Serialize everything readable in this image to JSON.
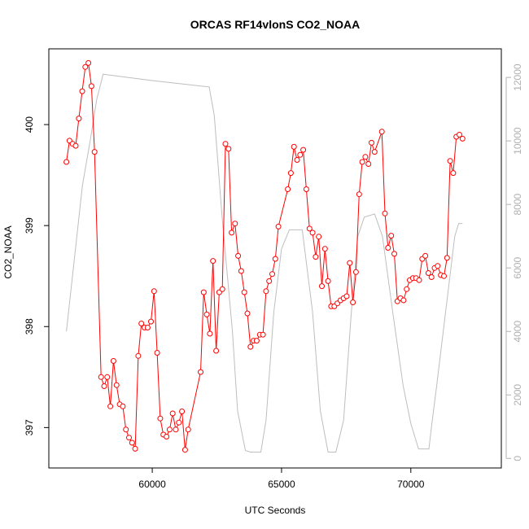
{
  "chart_data": {
    "type": "line",
    "title": "ORCAS RF14vlonS CO2_NOAA",
    "xlabel": "UTC Seconds",
    "ylabel": "CO2_NOAA",
    "y2label": "",
    "xlim": [
      56000,
      73500
    ],
    "ylim": [
      396.6,
      400.75
    ],
    "y2lim": [
      -300,
      12900
    ],
    "x_ticks": [
      60000,
      65000,
      70000
    ],
    "y_ticks": [
      397,
      398,
      399,
      400
    ],
    "y2_ticks": [
      0,
      2000,
      4000,
      6000,
      8000,
      10000,
      12000
    ],
    "grid": false,
    "legend": "none",
    "colors": {
      "co2": "#ff0000",
      "altitude": "#bebebe",
      "axes": "#000000",
      "right_axis": "#b0b0b0"
    },
    "series": [
      {
        "role": "co2",
        "x": [
          56680,
          56800,
          56920,
          57040,
          57160,
          57290,
          57410,
          57530,
          57650,
          57770,
          58020,
          58140,
          58260,
          58380,
          58500,
          58620,
          58740,
          58860,
          58980,
          59100,
          59220,
          59340,
          59460,
          59580,
          59700,
          59820,
          59950,
          60070,
          60190,
          60310,
          60430,
          60550,
          60670,
          60790,
          60910,
          61030,
          61150,
          61270,
          61390,
          61870,
          61990,
          62110,
          62230,
          62350,
          62470,
          62590,
          62710,
          62830,
          62950,
          63070,
          63200,
          63320,
          63440,
          63560,
          63680,
          63800,
          63920,
          64040,
          64160,
          64280,
          64400,
          64520,
          64640,
          64760,
          64880,
          65240,
          65360,
          65480,
          65600,
          65720,
          65840,
          65960,
          66080,
          66200,
          66320,
          66440,
          66560,
          66680,
          66800,
          66920,
          67040,
          67160,
          67280,
          67400,
          67520,
          67640,
          67760,
          67880,
          68000,
          68120,
          68240,
          68360,
          68480,
          68600,
          68880,
          69000,
          69120,
          69240,
          69360,
          69480,
          69600,
          69720,
          69840,
          69960,
          70080,
          70200,
          70320,
          70440,
          70560,
          70680,
          70800,
          70920,
          71040,
          71160,
          71280,
          71400,
          71520,
          71640,
          71760,
          71880,
          72000
        ],
        "y": [
          399.63,
          399.84,
          399.81,
          399.79,
          400.06,
          400.33,
          400.57,
          400.61,
          400.38,
          399.73,
          397.5,
          397.41,
          397.5,
          397.21,
          397.66,
          397.42,
          397.23,
          397.21,
          396.98,
          396.9,
          396.85,
          396.79,
          397.71,
          398.03,
          397.99,
          397.99,
          398.05,
          398.35,
          397.74,
          397.09,
          396.93,
          396.91,
          396.98,
          397.14,
          396.98,
          397.05,
          397.16,
          396.78,
          396.98,
          397.55,
          398.34,
          398.12,
          397.93,
          398.65,
          397.76,
          398.34,
          398.37,
          399.81,
          399.76,
          398.93,
          399.02,
          398.7,
          398.55,
          398.34,
          398.13,
          397.8,
          397.86,
          397.86,
          397.92,
          397.92,
          398.35,
          398.45,
          398.52,
          398.67,
          398.99,
          399.36,
          399.52,
          399.78,
          399.65,
          399.7,
          399.75,
          399.36,
          398.97,
          398.93,
          398.69,
          398.89,
          398.4,
          398.77,
          398.45,
          398.2,
          398.2,
          398.23,
          398.26,
          398.28,
          398.3,
          398.63,
          398.24,
          398.54,
          399.31,
          399.63,
          399.68,
          399.61,
          399.82,
          399.73,
          399.93,
          399.12,
          398.78,
          398.9,
          398.72,
          398.25,
          398.28,
          398.26,
          398.37,
          398.46,
          398.48,
          398.48,
          398.46,
          398.67,
          398.7,
          398.53,
          398.49,
          398.58,
          398.6,
          398.51,
          398.5,
          398.68,
          399.64,
          399.52,
          399.88,
          399.9,
          399.86
        ]
      },
      {
        "role": "altitude",
        "x": [
          56680,
          57300,
          57600,
          57850,
          58100,
          60000,
          62200,
          62400,
          62700,
          63100,
          63300,
          63600,
          63800,
          64200,
          64400,
          64700,
          65000,
          65300,
          65500,
          65800,
          66200,
          66500,
          66800,
          67100,
          67400,
          67700,
          67950,
          68200,
          68600,
          68900,
          69300,
          69700,
          70000,
          70300,
          70400,
          70700,
          70800,
          71000,
          71700,
          71850,
          72000
        ],
        "y": [
          4000,
          8600,
          10000,
          11300,
          12100,
          11900,
          11700,
          10800,
          7600,
          4000,
          1500,
          250,
          200,
          200,
          1200,
          4600,
          6600,
          7200,
          7200,
          7200,
          4600,
          1500,
          200,
          200,
          1200,
          4600,
          7000,
          7600,
          7700,
          7000,
          4600,
          2300,
          1100,
          300,
          300,
          300,
          1000,
          2300,
          7000,
          7400,
          7400
        ]
      }
    ]
  }
}
